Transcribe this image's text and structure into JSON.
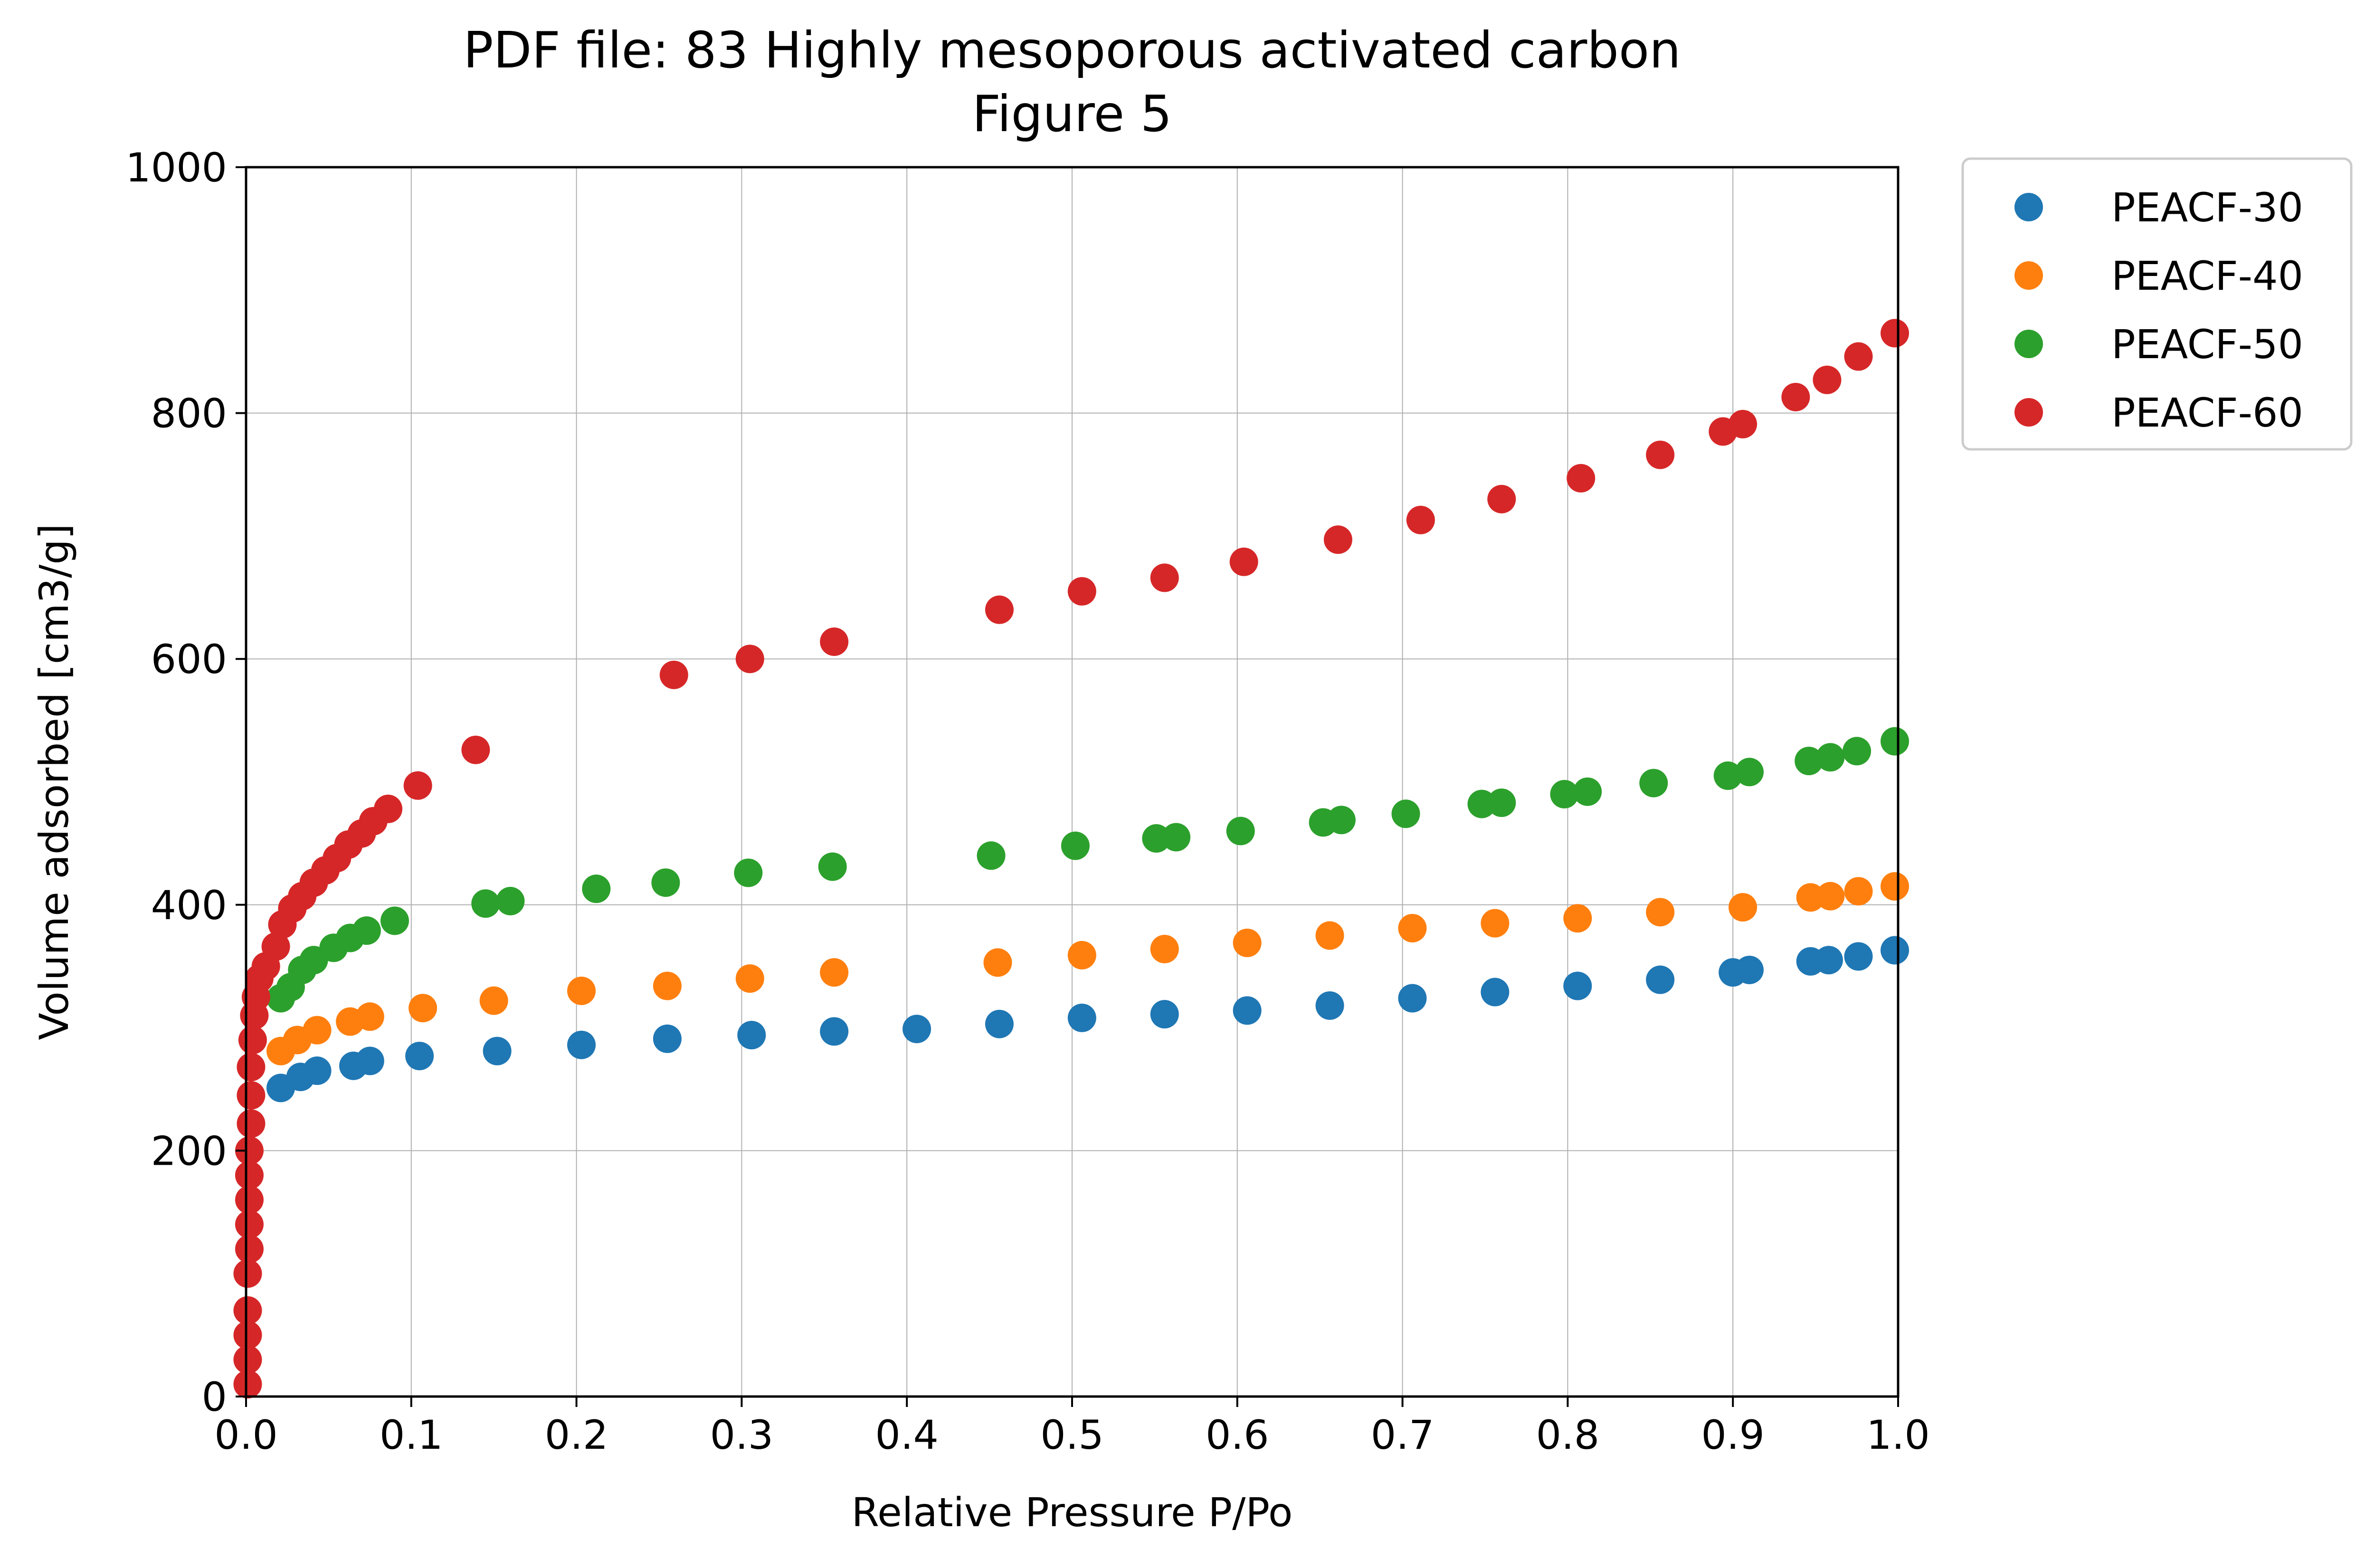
{
  "chart_data": {
    "type": "scatter",
    "title": "PDF file: 83 Highly mesoporous activated carbon",
    "subtitle": "Figure 5",
    "xlabel": "Relative Pressure P/Po",
    "ylabel": "Volume adsorbed [cm3/g]",
    "xlim": [
      0.0,
      1.0
    ],
    "ylim": [
      0,
      1000
    ],
    "x_ticks": [
      0.0,
      0.1,
      0.2,
      0.3,
      0.4,
      0.5,
      0.6,
      0.7,
      0.8,
      0.9,
      1.0
    ],
    "x_tick_labels": [
      "0.0",
      "0.1",
      "0.2",
      "0.3",
      "0.4",
      "0.5",
      "0.6",
      "0.7",
      "0.8",
      "0.9",
      "1.0"
    ],
    "y_ticks": [
      0,
      200,
      400,
      600,
      800,
      1000
    ],
    "y_tick_labels": [
      "0",
      "200",
      "400",
      "600",
      "800",
      "1000"
    ],
    "grid": true,
    "legend_position": "outside-right-top",
    "series": [
      {
        "name": "PEACF-30",
        "color": "#1f77b4",
        "x": [
          0.021,
          0.033,
          0.043,
          0.065,
          0.075,
          0.105,
          0.152,
          0.203,
          0.255,
          0.306,
          0.356,
          0.406,
          0.456,
          0.506,
          0.556,
          0.606,
          0.656,
          0.706,
          0.756,
          0.806,
          0.856,
          0.9,
          0.91,
          0.947,
          0.958,
          0.976,
          0.998
        ],
        "y": [
          251,
          260,
          265,
          269,
          273,
          277,
          281,
          286,
          291,
          294,
          297,
          299,
          303,
          308,
          311,
          314,
          318,
          324,
          329,
          334,
          339,
          345,
          347,
          354,
          355,
          358,
          363
        ]
      },
      {
        "name": "PEACF-40",
        "color": "#ff7f0e",
        "x": [
          0.021,
          0.031,
          0.043,
          0.063,
          0.075,
          0.107,
          0.15,
          0.203,
          0.255,
          0.305,
          0.356,
          0.455,
          0.506,
          0.556,
          0.606,
          0.656,
          0.706,
          0.756,
          0.806,
          0.856,
          0.906,
          0.947,
          0.959,
          0.976,
          0.998
        ],
        "y": [
          281,
          290,
          298,
          305,
          309,
          316,
          322,
          330,
          334,
          340,
          345,
          353,
          359,
          364,
          369,
          375,
          381,
          385,
          389,
          394,
          398,
          406,
          407,
          411,
          415
        ]
      },
      {
        "name": "PEACF-50",
        "color": "#2ca02c",
        "x": [
          0.021,
          0.027,
          0.034,
          0.041,
          0.053,
          0.063,
          0.073,
          0.09,
          0.145,
          0.16,
          0.212,
          0.254,
          0.304,
          0.355,
          0.451,
          0.502,
          0.551,
          0.563,
          0.602,
          0.652,
          0.663,
          0.702,
          0.748,
          0.76,
          0.798,
          0.812,
          0.852,
          0.897,
          0.91,
          0.946,
          0.959,
          0.975,
          0.998
        ],
        "y": [
          324,
          333,
          347,
          355,
          365,
          373,
          379,
          387,
          401,
          403,
          413,
          418,
          426,
          431,
          440,
          448,
          454,
          455,
          460,
          467,
          469,
          474,
          482,
          483,
          490,
          492,
          499,
          505,
          508,
          517,
          520,
          525,
          533
        ]
      },
      {
        "name": "PEACF-60",
        "color": "#d62728",
        "x": [
          0.001,
          0.001,
          0.001,
          0.001,
          0.001,
          0.002,
          0.002,
          0.002,
          0.002,
          0.002,
          0.003,
          0.003,
          0.003,
          0.004,
          0.005,
          0.006,
          0.008,
          0.012,
          0.018,
          0.022,
          0.028,
          0.034,
          0.041,
          0.048,
          0.055,
          0.062,
          0.07,
          0.077,
          0.086,
          0.104,
          0.139,
          0.259,
          0.305,
          0.356,
          0.456,
          0.506,
          0.556,
          0.604,
          0.661,
          0.711,
          0.76,
          0.808,
          0.856,
          0.894,
          0.906,
          0.938,
          0.957,
          0.976,
          0.998
        ],
        "y": [
          10,
          30,
          50,
          70,
          100,
          120,
          140,
          160,
          180,
          200,
          222,
          245,
          268,
          290,
          310,
          325,
          340,
          350,
          366,
          384,
          397,
          407,
          418,
          428,
          438,
          449,
          458,
          468,
          478,
          497,
          526,
          587,
          600,
          614,
          640,
          655,
          666,
          679,
          697,
          713,
          730,
          747,
          766,
          785,
          791,
          813,
          827,
          846,
          865
        ]
      }
    ]
  }
}
